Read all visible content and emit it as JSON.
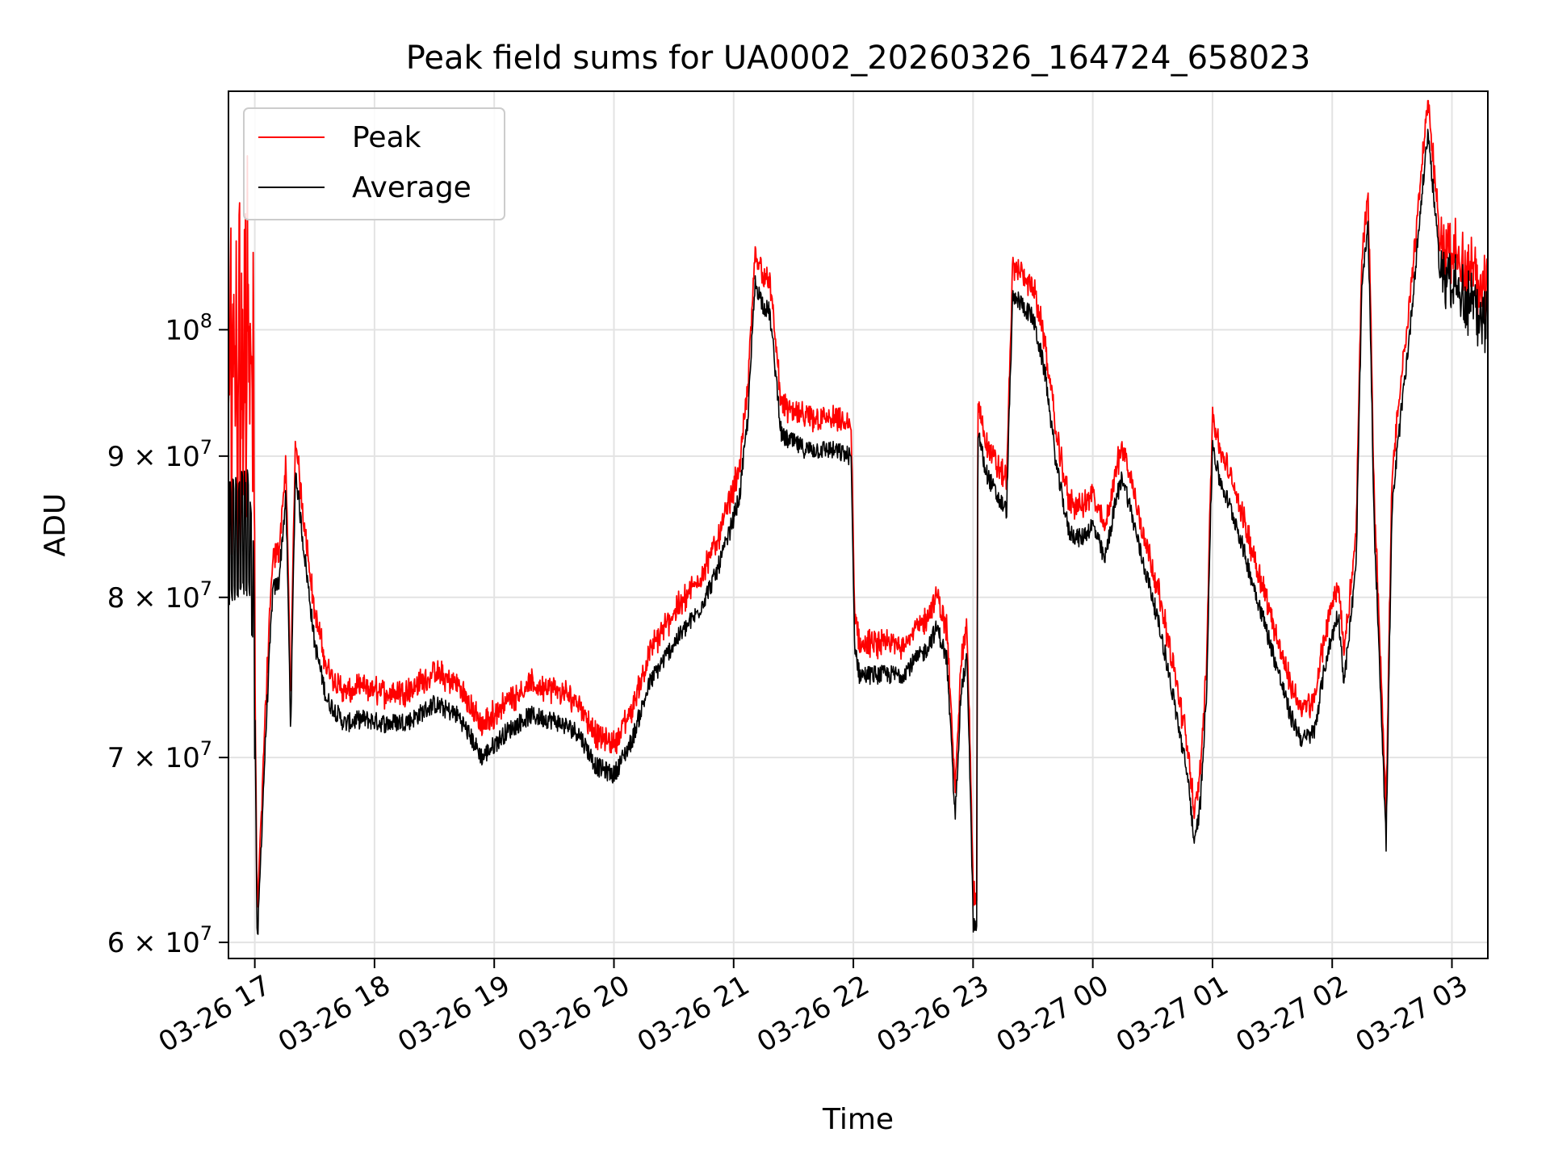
{
  "chart_data": {
    "type": "line",
    "title": "Peak field sums for UA0002_20260326_164724_658023",
    "xlabel": "Time",
    "ylabel": "ADU",
    "yscale": "log",
    "ylim": [
      59200000,
      122000000
    ],
    "xlim_hours": [
      16.78,
      27.3
    ],
    "grid": true,
    "legend_position": "upper-left",
    "x_ticks": [
      {
        "hour": 17,
        "label": "03-26 17"
      },
      {
        "hour": 18,
        "label": "03-26 18"
      },
      {
        "hour": 19,
        "label": "03-26 19"
      },
      {
        "hour": 20,
        "label": "03-26 20"
      },
      {
        "hour": 21,
        "label": "03-26 21"
      },
      {
        "hour": 22,
        "label": "03-26 22"
      },
      {
        "hour": 23,
        "label": "03-26 23"
      },
      {
        "hour": 24,
        "label": "03-27 00"
      },
      {
        "hour": 25,
        "label": "03-27 01"
      },
      {
        "hour": 26,
        "label": "03-27 02"
      },
      {
        "hour": 27,
        "label": "03-27 03"
      }
    ],
    "y_ticks": [
      {
        "value": 60000000,
        "base": "6",
        "exp": "7",
        "label": "6 × 10^7"
      },
      {
        "value": 70000000,
        "base": "7",
        "exp": "7",
        "label": "7 × 10^7"
      },
      {
        "value": 80000000,
        "base": "8",
        "exp": "7",
        "label": "8 × 10^7"
      },
      {
        "value": 90000000,
        "base": "9",
        "exp": "7",
        "label": "9 × 10^7"
      },
      {
        "value": 100000000,
        "base": "10",
        "exp": "8",
        "label": "10^8"
      }
    ],
    "series": [
      {
        "name": "Peak",
        "color": "#ff0000"
      },
      {
        "name": "Average",
        "color": "#000000",
        "hours": [
          16.78,
          16.95,
          16.99,
          17.02,
          17.08,
          17.15,
          17.2,
          17.26,
          17.3,
          17.34,
          17.4,
          17.5,
          17.6,
          17.75,
          17.9,
          18.1,
          18.3,
          18.5,
          18.7,
          18.9,
          19.1,
          19.3,
          19.5,
          19.7,
          19.85,
          20.0,
          20.15,
          20.3,
          20.5,
          20.7,
          20.85,
          20.95,
          21.05,
          21.12,
          21.18,
          21.25,
          21.3,
          21.4,
          21.6,
          21.8,
          21.98,
          22.01,
          22.05,
          22.2,
          22.4,
          22.6,
          22.7,
          22.78,
          22.85,
          22.9,
          22.95,
          23.0,
          23.03,
          23.04,
          23.1,
          23.2,
          23.28,
          23.33,
          23.38,
          23.5,
          23.6,
          23.7,
          23.8,
          23.9,
          24.0,
          24.1,
          24.2,
          24.25,
          24.4,
          24.5,
          24.6,
          24.7,
          24.8,
          24.85,
          24.9,
          24.95,
          25.0,
          25.05,
          25.2,
          25.3,
          25.5,
          25.65,
          25.75,
          25.85,
          25.95,
          26.05,
          26.1,
          26.2,
          26.25,
          26.3,
          26.35,
          26.45,
          26.5,
          26.55,
          26.65,
          26.75,
          26.8,
          26.9,
          27.0,
          27.15,
          27.3
        ],
        "values": [
          85000000,
          86000000,
          81000000,
          59500000,
          69500000,
          80500000,
          81000000,
          87000000,
          71500000,
          89000000,
          84000000,
          77000000,
          73500000,
          72000000,
          72300000,
          72000000,
          72200000,
          73200000,
          72500000,
          70000000,
          71500000,
          72500000,
          72200000,
          71500000,
          69500000,
          69000000,
          71000000,
          74500000,
          77000000,
          79000000,
          81500000,
          84000000,
          87000000,
          93000000,
          104000000,
          102000000,
          101500000,
          91500000,
          90500000,
          90500000,
          90000000,
          77000000,
          75000000,
          75000000,
          75000000,
          76500000,
          78000000,
          76000000,
          66500000,
          74000000,
          76000000,
          61000000,
          60500000,
          92000000,
          89000000,
          87000000,
          86000000,
          102500000,
          102500000,
          101000000,
          96500000,
          89000000,
          84500000,
          84000000,
          85000000,
          82500000,
          87000000,
          88500000,
          83000000,
          80000000,
          76500000,
          72500000,
          68500000,
          65000000,
          67500000,
          74000000,
          91000000,
          88500000,
          85000000,
          82000000,
          76500000,
          72500000,
          71000000,
          71500000,
          76000000,
          79000000,
          74500000,
          82000000,
          104000000,
          109000000,
          85000000,
          65000000,
          86000000,
          91000000,
          100000000,
          112000000,
          118000000,
          105000000,
          104000000,
          102000000,
          101000000
        ]
      }
    ]
  }
}
